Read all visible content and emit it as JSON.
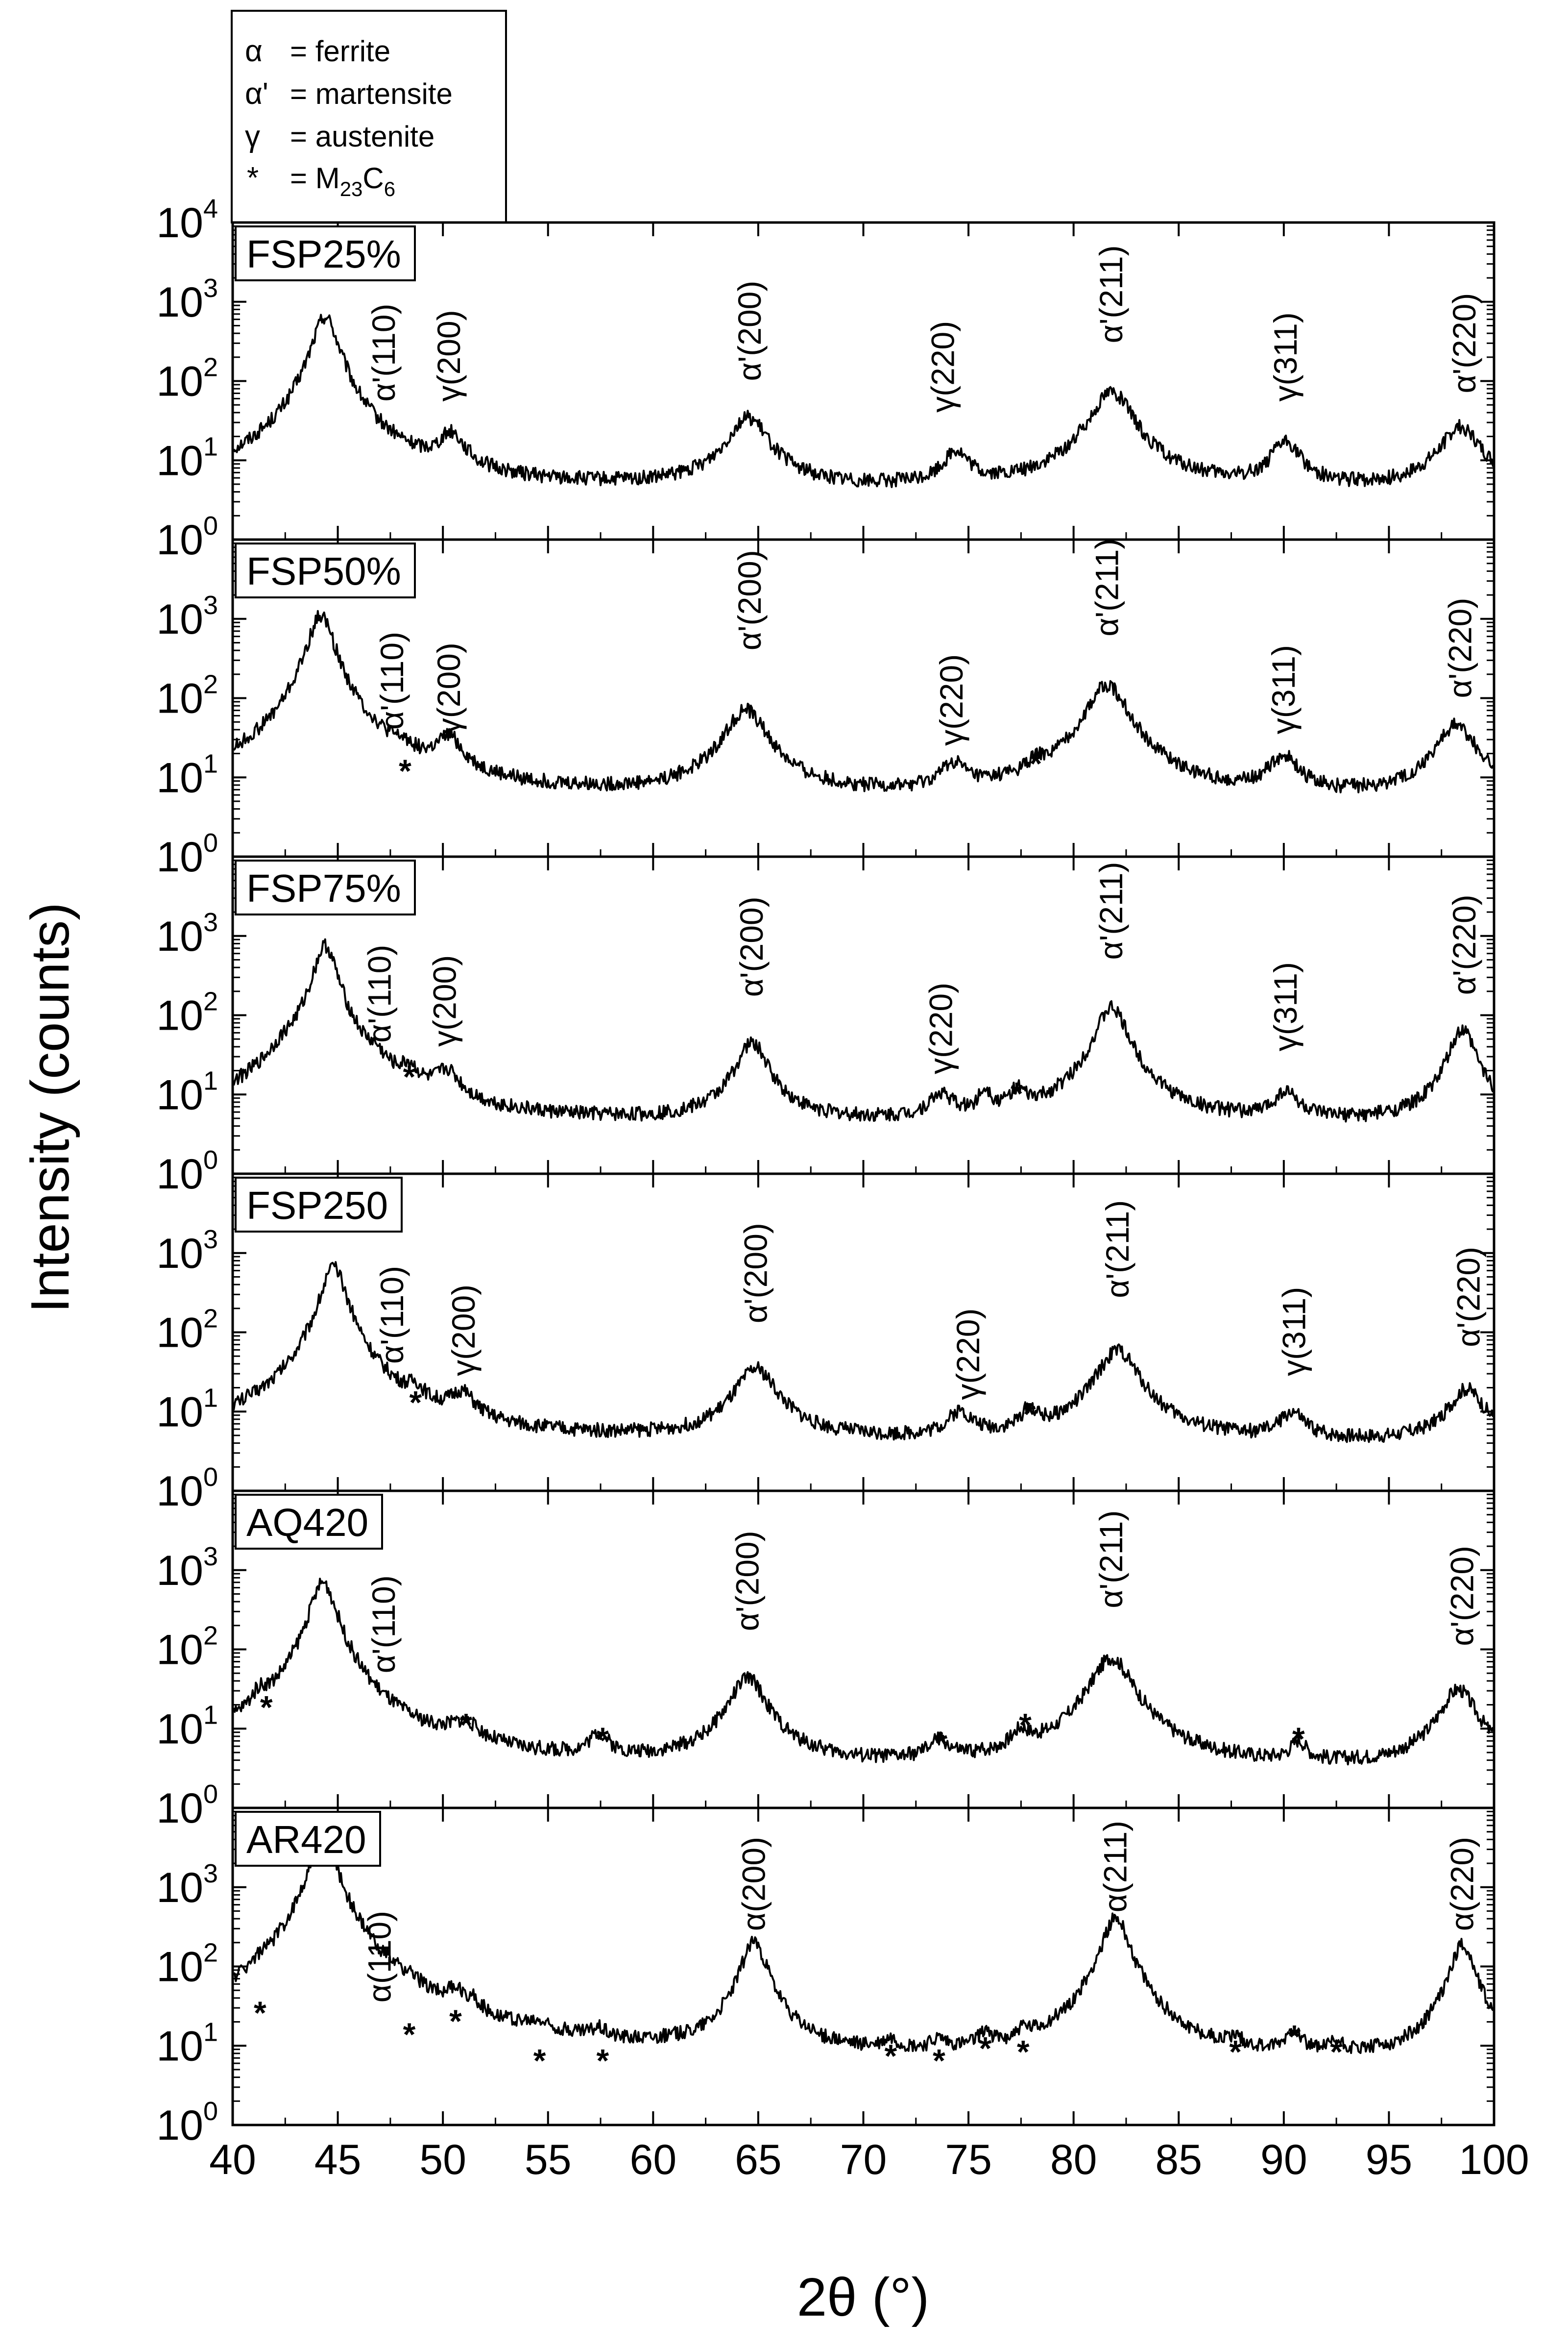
{
  "legend": {
    "entries": [
      {
        "symbol": "α",
        "text": "= ferrite"
      },
      {
        "symbol": "α'",
        "text": "= martensite"
      },
      {
        "symbol": "γ",
        "text": "= austenite"
      },
      {
        "symbol": "*",
        "text": "= M",
        "sub1": "23",
        "mid": "C",
        "sub2": "6"
      }
    ]
  },
  "axes": {
    "xlabel": "2θ (°)",
    "ylabel": "Intensity (counts)"
  },
  "chart_data": {
    "type": "line",
    "xlabel": "2θ (°)",
    "ylabel": "Intensity (counts)",
    "xlim": [
      40,
      100
    ],
    "xticks": [
      "40",
      "45",
      "50",
      "55",
      "60",
      "65",
      "70",
      "75",
      "80",
      "85",
      "90",
      "95",
      "100"
    ],
    "yscale": "log",
    "ylim": [
      1,
      10000
    ],
    "yticks_base": "10",
    "yticks_exp": [
      "0",
      "1",
      "2",
      "3",
      "4"
    ],
    "legend_location": "top-left",
    "panels": [
      {
        "name": "FSP25%",
        "baseline": 4,
        "peaks": [
          [
            44.4,
            650,
            0.55
          ],
          [
            50.4,
            14,
            0.6
          ],
          [
            64.5,
            30,
            0.9
          ],
          [
            74.4,
            8,
            0.6
          ],
          [
            81.8,
            70,
            0.9
          ],
          [
            90.1,
            12,
            0.7
          ],
          [
            98.4,
            22,
            0.9
          ]
        ],
        "labels": [
          {
            "text": "α'(110)",
            "x": 47.2,
            "y": 55
          },
          {
            "text": "γ(200)",
            "x": 50.3,
            "y": 55
          },
          {
            "text": "α'(200)",
            "x": 64.6,
            "y": 100
          },
          {
            "text": "γ(220)",
            "x": 73.8,
            "y": 40
          },
          {
            "text": "α'(211)",
            "x": 81.8,
            "y": 300
          },
          {
            "text": "γ(311)",
            "x": 90.1,
            "y": 55
          },
          {
            "text": "α'(220)",
            "x": 98.6,
            "y": 70
          }
        ],
        "stars": []
      },
      {
        "name": "FSP50%",
        "baseline": 5,
        "peaks": [
          [
            44.2,
            1100,
            0.55
          ],
          [
            48.2,
            5,
            0.4
          ],
          [
            50.3,
            20,
            0.6
          ],
          [
            64.4,
            65,
            0.9
          ],
          [
            74.3,
            8,
            0.6
          ],
          [
            78.2,
            4,
            0.5
          ],
          [
            81.6,
            140,
            0.9
          ],
          [
            90.0,
            12,
            0.7
          ],
          [
            98.2,
            40,
            0.9
          ]
        ],
        "labels": [
          {
            "text": "α'(110)",
            "x": 47.6,
            "y": 40
          },
          {
            "text": "γ(200)",
            "x": 50.3,
            "y": 35
          },
          {
            "text": "α'(200)",
            "x": 64.6,
            "y": 400
          },
          {
            "text": "γ(220)",
            "x": 74.2,
            "y": 25
          },
          {
            "text": "α'(211)",
            "x": 81.6,
            "y": 600
          },
          {
            "text": "γ(311)",
            "x": 90.0,
            "y": 35
          },
          {
            "text": "α'(220)",
            "x": 98.4,
            "y": 100
          }
        ],
        "stars": [
          [
            48.2,
            13
          ],
          [
            78.2,
            16
          ]
        ]
      },
      {
        "name": "FSP75%",
        "baseline": 4,
        "peaks": [
          [
            42.5,
            12,
            0.8
          ],
          [
            44.4,
            750,
            0.5
          ],
          [
            46.8,
            8,
            0.4
          ],
          [
            48.4,
            9,
            0.4
          ],
          [
            50.2,
            11,
            0.6
          ],
          [
            64.7,
            40,
            0.7
          ],
          [
            73.7,
            5,
            0.6
          ],
          [
            75.8,
            6,
            0.3
          ],
          [
            77.3,
            5,
            0.4
          ],
          [
            81.8,
            120,
            0.7
          ],
          [
            90.1,
            6,
            0.6
          ],
          [
            98.5,
            60,
            0.6
          ]
        ],
        "labels": [
          {
            "text": "α'(110)",
            "x": 47.0,
            "y": 45
          },
          {
            "text": "γ(200)",
            "x": 50.1,
            "y": 40
          },
          {
            "text": "α'(200)",
            "x": 64.7,
            "y": 170
          },
          {
            "text": "γ(220)",
            "x": 73.7,
            "y": 18
          },
          {
            "text": "α'(211)",
            "x": 81.8,
            "y": 500
          },
          {
            "text": "γ(311)",
            "x": 90.1,
            "y": 35
          },
          {
            "text": "α'(220)",
            "x": 98.6,
            "y": 180
          }
        ],
        "stars": [
          [
            48.4,
            18
          ],
          [
            77.3,
            11
          ]
        ]
      },
      {
        "name": "FSP250",
        "baseline": 4,
        "peaks": [
          [
            44.8,
            650,
            0.55
          ],
          [
            48.7,
            7,
            0.4
          ],
          [
            50.9,
            9,
            0.6
          ],
          [
            64.9,
            30,
            0.9
          ],
          [
            74.6,
            5,
            0.6
          ],
          [
            77.9,
            5,
            0.4
          ],
          [
            82.1,
            55,
            0.9
          ],
          [
            90.4,
            5,
            0.6
          ],
          [
            98.7,
            15,
            0.8
          ]
        ],
        "labels": [
          {
            "text": "α'(110)",
            "x": 47.6,
            "y": 40
          },
          {
            "text": "γ(200)",
            "x": 51.0,
            "y": 28
          },
          {
            "text": "α'(200)",
            "x": 64.9,
            "y": 130
          },
          {
            "text": "γ(220)",
            "x": 75.0,
            "y": 14
          },
          {
            "text": "α'(211)",
            "x": 82.1,
            "y": 270
          },
          {
            "text": "γ(311)",
            "x": 90.5,
            "y": 28
          },
          {
            "text": "α'(220)",
            "x": 98.8,
            "y": 65
          }
        ],
        "stars": [
          [
            48.7,
            14
          ],
          [
            77.9,
            10
          ]
        ]
      },
      {
        "name": "AQ420",
        "baseline": 3,
        "peaks": [
          [
            41.3,
            10,
            0.4
          ],
          [
            44.3,
            700,
            0.55
          ],
          [
            51.0,
            5,
            0.8
          ],
          [
            57.4,
            4,
            0.5
          ],
          [
            64.5,
            40,
            0.8
          ],
          [
            73.6,
            3,
            0.5
          ],
          [
            77.5,
            4,
            0.5
          ],
          [
            81.8,
            75,
            0.9
          ],
          [
            90.7,
            3,
            0.4
          ],
          [
            98.3,
            28,
            0.8
          ]
        ],
        "labels": [
          {
            "text": "α'(110)",
            "x": 47.2,
            "y": 50
          },
          {
            "text": "α'(200)",
            "x": 64.5,
            "y": 170
          },
          {
            "text": "α'(211)",
            "x": 81.8,
            "y": 330
          },
          {
            "text": "α'(220)",
            "x": 98.5,
            "y": 110
          }
        ],
        "stars": [
          [
            41.6,
            20
          ],
          [
            51.1,
            12
          ],
          [
            57.6,
            8
          ],
          [
            73.7,
            7
          ],
          [
            77.7,
            12
          ],
          [
            90.7,
            8
          ]
        ]
      },
      {
        "name": "AR420",
        "baseline": 5,
        "peaks": [
          [
            41.2,
            12,
            0.4
          ],
          [
            44.3,
            5000,
            0.5
          ],
          [
            48.4,
            9,
            0.3
          ],
          [
            50.6,
            18,
            0.4
          ],
          [
            51.4,
            10,
            0.3
          ],
          [
            54.6,
            3,
            0.4
          ],
          [
            57.4,
            4,
            0.4
          ],
          [
            64.8,
            200,
            0.55
          ],
          [
            71.3,
            3,
            0.4
          ],
          [
            73.6,
            3,
            0.4
          ],
          [
            75.8,
            6,
            0.3
          ],
          [
            77.6,
            4,
            0.3
          ],
          [
            82.0,
            400,
            0.6
          ],
          [
            87.7,
            3,
            0.4
          ],
          [
            90.5,
            8,
            0.4
          ],
          [
            92.5,
            3,
            0.4
          ],
          [
            98.5,
            180,
            0.55
          ]
        ],
        "labels": [
          {
            "text": "α(110)",
            "x": 47.0,
            "y": 35
          },
          {
            "text": "α(200)",
            "x": 64.8,
            "y": 280
          },
          {
            "text": "α(211)",
            "x": 82.0,
            "y": 480
          },
          {
            "text": "α(220)",
            "x": 98.5,
            "y": 280
          }
        ],
        "stars": [
          [
            41.3,
            28
          ],
          [
            48.4,
            15
          ],
          [
            50.6,
            22
          ],
          [
            54.6,
            7
          ],
          [
            57.6,
            7
          ],
          [
            71.3,
            8
          ],
          [
            73.6,
            7
          ],
          [
            75.8,
            10
          ],
          [
            77.6,
            9
          ],
          [
            87.7,
            9
          ],
          [
            90.5,
            14
          ],
          [
            92.5,
            9
          ]
        ]
      }
    ]
  }
}
